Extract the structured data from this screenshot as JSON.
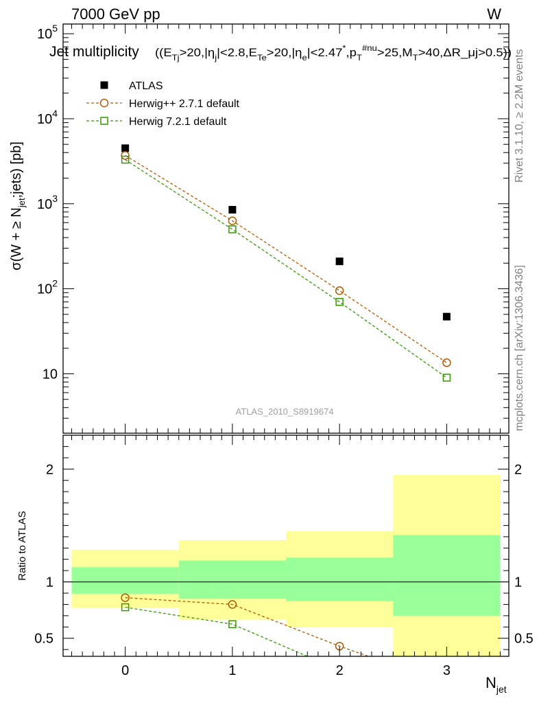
{
  "header": {
    "energy": "7000 GeV pp",
    "process": "W"
  },
  "title": {
    "main": "Jet multiplicity",
    "cuts": "((E_Tj>20,|η_j|<2.8,E_Te>20,|η_e|<2.47^*,p_T^#nu>25,M_T>40,ΔR_μj>0.5))"
  },
  "side_labels": {
    "rivet": "Rivet 3.1.10, ≥ 2.2M events",
    "mcplots": "mcplots.cern.ch [arXiv:1306.3436]"
  },
  "analysis_id": "ATLAS_2010_S8919674",
  "colors": {
    "data": "#000000",
    "herwigpp": "#b35900",
    "herwig7": "#339900",
    "band_inner": "#99ff99",
    "band_outer": "#ffff99"
  },
  "chart_data": [
    {
      "type": "scatter",
      "panel": "main",
      "y_scale": "log",
      "ylabel": "σ(W + ≥ N_jet;jets) [pb]",
      "ylim": [
        2,
        130000
      ],
      "xlim": [
        -0.58,
        3.58
      ],
      "y_tick_labels": [
        "10",
        "10^2",
        "10^3",
        "10^4",
        "10^5"
      ],
      "legend_position": "top-left",
      "series": [
        {
          "name": "ATLAS",
          "style": "filled-square",
          "x": [
            0,
            1,
            2,
            3
          ],
          "y": [
            4500,
            850,
            210,
            47
          ]
        },
        {
          "name": "Herwig++ 2.7.1 default",
          "style": "open-circle-dashed",
          "x": [
            0,
            1,
            2,
            3
          ],
          "y": [
            3700,
            630,
            95,
            13.5
          ]
        },
        {
          "name": "Herwig 7.2.1 default",
          "style": "open-square-dashed",
          "x": [
            0,
            1,
            2,
            3
          ],
          "y": [
            3300,
            500,
            70,
            9
          ]
        }
      ]
    },
    {
      "type": "line",
      "panel": "ratio",
      "ylabel": "Ratio to ATLAS",
      "xlabel": "N_jet",
      "ylim": [
        0.34,
        2.3
      ],
      "xlim": [
        -0.58,
        3.58
      ],
      "x_tick_labels": [
        "0",
        "1",
        "2",
        "3"
      ],
      "y_tick_labels": [
        "0.5",
        "1",
        "2"
      ],
      "bands": [
        {
          "x": 0,
          "inner": [
            0.895,
            1.13
          ],
          "outer": [
            0.77,
            1.285
          ]
        },
        {
          "x": 1,
          "inner": [
            0.85,
            1.19
          ],
          "outer": [
            0.665,
            1.37
          ]
        },
        {
          "x": 2,
          "inner": [
            0.83,
            1.215
          ],
          "outer": [
            0.6,
            1.45
          ]
        },
        {
          "x": 3,
          "inner": [
            0.7,
            1.415
          ],
          "outer": [
            0.3,
            1.95
          ]
        }
      ],
      "series": [
        {
          "name": "Herwig++ 2.7.1 default",
          "x": [
            0,
            1,
            2,
            2.27
          ],
          "y": [
            0.86,
            0.8,
            0.43,
            0.34
          ]
        },
        {
          "name": "Herwig 7.2.1 default",
          "x": [
            0,
            1,
            1.7
          ],
          "y": [
            0.775,
            0.625,
            0.34
          ]
        }
      ]
    }
  ]
}
